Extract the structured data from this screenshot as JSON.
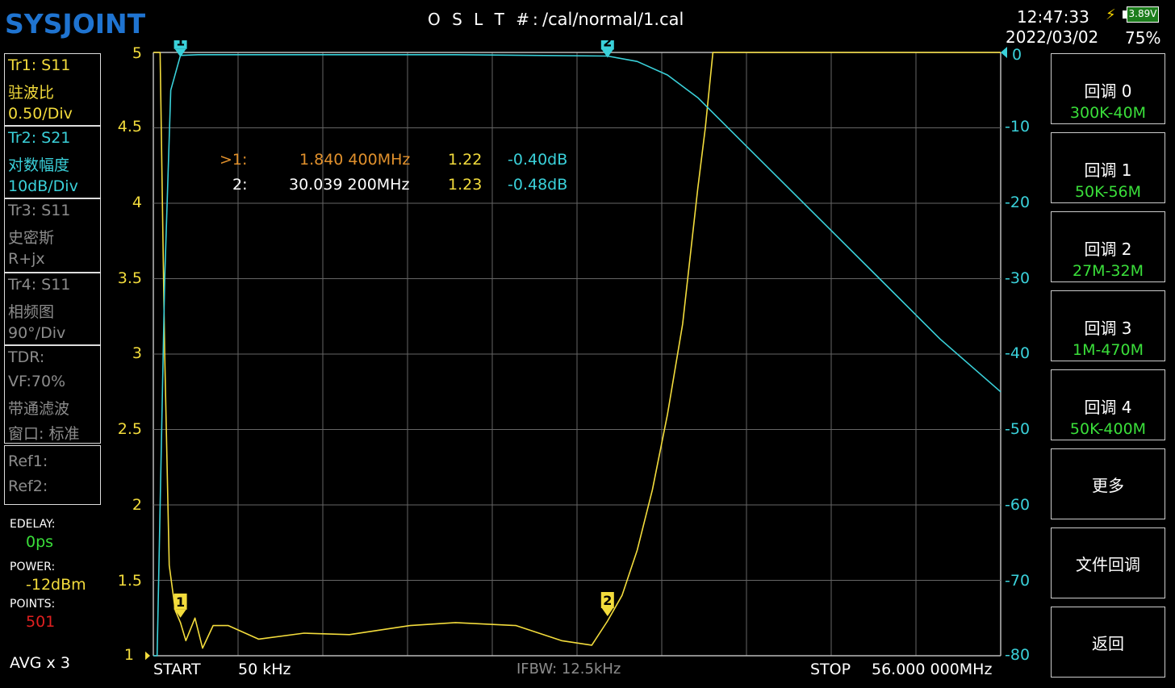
{
  "header": {
    "brand": "SYSJOINT",
    "cal_label": "O S L T #:",
    "cal_path": "/cal/normal/1.cal",
    "time": "12:47:33",
    "date": "2022/03/02",
    "battery_voltage": "3.89V",
    "battery_percent": "75%",
    "charging_icon": "lightning-bolt-icon",
    "colors": {
      "brand": "#1f74d1",
      "battery_fill": "#1c7d1c"
    }
  },
  "traces": [
    {
      "line1": "Tr1:   S11",
      "line2": "驻波比",
      "line3": "0.50/Div",
      "color": "#f3dc3c",
      "active": true
    },
    {
      "line1": "Tr2:   S21",
      "line2": "对数幅度",
      "line3": "10dB/Div",
      "color": "#3ad1da",
      "active": true
    },
    {
      "line1": "Tr3:   S11",
      "line2": "史密斯",
      "line3": "R+jx",
      "color": "#8c8c8c",
      "active": false
    },
    {
      "line1": "Tr4:   S11",
      "line2": "相频图",
      "line3": "90°/Div",
      "color": "#8c8c8c",
      "active": false
    }
  ],
  "tdr": {
    "line1": "TDR:",
    "line2": "VF:70%",
    "line3": "带通滤波",
    "line4": "窗口: 标准",
    "color": "#8c8c8c"
  },
  "refs": {
    "ref1": "Ref1:",
    "ref2": "Ref2:"
  },
  "settings": {
    "edelay_label": "EDELAY:",
    "edelay_value": "0ps",
    "power_label": "POWER:",
    "power_value": "-12dBm",
    "points_label": "POINTS:",
    "points_value": "501",
    "avg": "AVG x 3",
    "colors": {
      "edelay": "#3adf3a",
      "power": "#f3dc3c",
      "points": "#e02020"
    }
  },
  "markers": {
    "rows": [
      {
        "id": ">1:",
        "freq": "1.840 400MHz",
        "swr": "1.22",
        "db": "-0.40dB",
        "active": true
      },
      {
        "id": "2:",
        "freq": "30.039 200MHz",
        "swr": "1.23",
        "db": "-0.48dB",
        "active": false
      }
    ],
    "tags": [
      "1",
      "2"
    ]
  },
  "bottom": {
    "start_label": "START",
    "start_value": "50 kHz",
    "ifbw": "IFBW: 12.5kHz",
    "stop_label": "STOP",
    "stop_value": "56.000 000MHz"
  },
  "menu": [
    {
      "title": "回调 0",
      "sub": "300K-40M"
    },
    {
      "title": "回调 1",
      "sub": "50K-56M"
    },
    {
      "title": "回调 2",
      "sub": "27M-32M"
    },
    {
      "title": "回调 3",
      "sub": "1M-470M"
    },
    {
      "title": "回调 4",
      "sub": "50K-400M"
    },
    {
      "title": "更多",
      "sub": ""
    },
    {
      "title": "文件回调",
      "sub": ""
    },
    {
      "title": "返回",
      "sub": ""
    }
  ],
  "chart_data": {
    "type": "line",
    "x_unit": "MHz",
    "xlim": [
      0.05,
      56.0
    ],
    "left_axis": {
      "ticks": [
        "5",
        "4.5",
        "4",
        "3.5",
        "3",
        "2.5",
        "2",
        "1.5",
        "1"
      ],
      "ylim": [
        1,
        5
      ]
    },
    "right_axis": {
      "ticks": [
        "0",
        "-10",
        "-20",
        "-30",
        "-40",
        "-50",
        "-60",
        "-70",
        "-80"
      ],
      "ylim": [
        -80,
        0
      ]
    },
    "grid": true,
    "series": [
      {
        "trace": "Tr1",
        "axis": "left",
        "color": "#f3dc3c",
        "x": [
          0.05,
          0.2,
          0.5,
          0.8,
          1.1,
          1.5,
          1.84,
          2.2,
          2.8,
          3.3,
          4.0,
          5.0,
          7.0,
          10.0,
          13.0,
          17.0,
          20.0,
          24.0,
          27.0,
          29.0,
          30.04,
          31.0,
          32.0,
          33.0,
          34.0,
          35.0,
          36.0,
          36.5,
          37.0,
          37.5,
          38.0,
          39.0,
          42.0,
          50.0,
          56.0
        ],
        "y": [
          5,
          5,
          5,
          3.0,
          1.6,
          1.3,
          1.22,
          1.1,
          1.25,
          1.05,
          1.2,
          1.2,
          1.11,
          1.15,
          1.14,
          1.2,
          1.22,
          1.2,
          1.1,
          1.07,
          1.23,
          1.4,
          1.7,
          2.1,
          2.6,
          3.2,
          4.1,
          4.5,
          5,
          5,
          5,
          5,
          5,
          5,
          5
        ]
      },
      {
        "trace": "Tr2",
        "axis": "right",
        "color": "#3ad1da",
        "x": [
          0.05,
          0.3,
          0.8,
          1.2,
          1.84,
          3.0,
          10.0,
          20.0,
          30.04,
          32.0,
          34.0,
          36.0,
          40.0,
          44.0,
          48.0,
          52.0,
          56.0
        ],
        "y": [
          -80,
          -80,
          -30,
          -5,
          -0.4,
          -0.3,
          -0.3,
          -0.3,
          -0.48,
          -1.2,
          -3,
          -6,
          -14,
          -22,
          -30,
          -38,
          -45
        ]
      }
    ],
    "marker_points": [
      {
        "label": "1",
        "x": 1.84,
        "swr": 1.22,
        "db": -0.4
      },
      {
        "label": "2",
        "x": 30.04,
        "swr": 1.23,
        "db": -0.48
      }
    ]
  }
}
